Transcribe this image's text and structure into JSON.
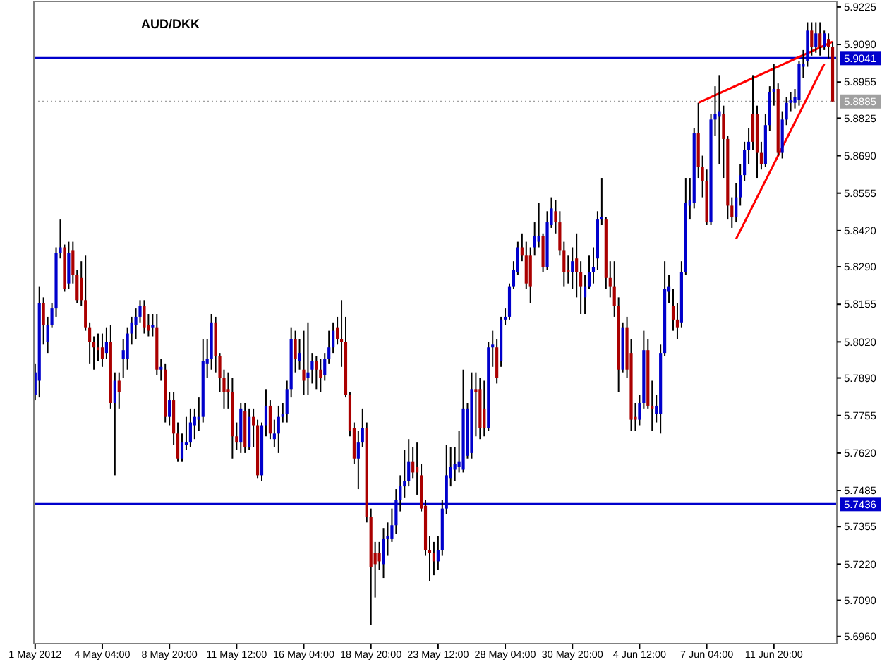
{
  "chart_data": {
    "type": "candlestick",
    "title": "AUD/DKK",
    "categories": [
      "1 May 2012",
      null,
      null,
      null,
      null,
      null,
      null,
      null,
      null,
      null,
      null,
      null,
      null,
      null,
      null,
      null,
      "4 May 04:00",
      null,
      null,
      null,
      null,
      null,
      null,
      null,
      null,
      null,
      null,
      null,
      null,
      null,
      null,
      null,
      "8 May 20:00",
      null,
      null,
      null,
      null,
      null,
      null,
      null,
      null,
      null,
      null,
      null,
      null,
      null,
      null,
      null,
      "11 May 12:00",
      null,
      null,
      null,
      null,
      null,
      null,
      null,
      null,
      null,
      null,
      null,
      null,
      null,
      null,
      null,
      "16 May 04:00",
      null,
      null,
      null,
      null,
      null,
      null,
      null,
      null,
      null,
      null,
      null,
      null,
      null,
      null,
      null,
      "18 May 20:00",
      null,
      null,
      null,
      null,
      null,
      null,
      null,
      null,
      null,
      null,
      null,
      null,
      null,
      null,
      null,
      "23 May 12:00",
      null,
      null,
      null,
      null,
      null,
      null,
      null,
      null,
      null,
      null,
      null,
      null,
      null,
      null,
      null,
      "28 May 04:00",
      null,
      null,
      null,
      null,
      null,
      null,
      null,
      null,
      null,
      null,
      null,
      null,
      null,
      null,
      null,
      "30 May 20:00",
      null,
      null,
      null,
      null,
      null,
      null,
      null,
      null,
      null,
      null,
      null,
      null,
      null,
      null,
      null,
      "4 Jun 12:00",
      null,
      null,
      null,
      null,
      null,
      null,
      null,
      null,
      null,
      null,
      null,
      null,
      null,
      null,
      null,
      "7 Jun 04:00",
      null,
      null,
      null,
      null,
      null,
      null,
      null,
      null,
      null,
      null,
      null,
      null,
      null,
      null,
      null,
      "11 Jun 20:00",
      null,
      null,
      null,
      null,
      null,
      null,
      null,
      null,
      null,
      null,
      null,
      null,
      null,
      null
    ],
    "ohlc": [
      [
        5.783,
        5.794,
        5.781,
        5.791
      ],
      [
        5.788,
        5.822,
        5.782,
        5.816
      ],
      [
        5.816,
        5.818,
        5.801,
        5.808
      ],
      [
        5.802,
        5.811,
        5.798,
        5.808
      ],
      [
        5.808,
        5.816,
        5.807,
        5.814
      ],
      [
        5.814,
        5.836,
        5.811,
        5.834
      ],
      [
        5.834,
        5.846,
        5.832,
        5.836
      ],
      [
        5.836,
        5.837,
        5.82,
        5.821
      ],
      [
        5.823,
        5.838,
        5.821,
        5.834
      ],
      [
        5.835,
        5.838,
        5.823,
        5.826
      ],
      [
        5.826,
        5.828,
        5.816,
        5.817
      ],
      [
        5.825,
        5.831,
        5.815,
        5.817
      ],
      [
        5.817,
        5.833,
        5.806,
        5.807
      ],
      [
        5.807,
        5.809,
        5.794,
        5.802
      ],
      [
        5.802,
        5.804,
        5.792,
        5.8
      ],
      [
        5.8,
        5.805,
        5.795,
        5.799
      ],
      [
        5.8,
        5.805,
        5.793,
        5.796
      ],
      [
        5.798,
        5.807,
        5.796,
        5.802
      ],
      [
        5.802,
        5.808,
        5.778,
        5.78
      ],
      [
        5.78,
        5.791,
        5.754,
        5.788
      ],
      [
        5.788,
        5.791,
        5.778,
        5.784
      ],
      [
        5.796,
        5.803,
        5.789,
        5.799
      ],
      [
        5.796,
        5.807,
        5.792,
        5.805
      ],
      [
        5.805,
        5.811,
        5.801,
        5.809
      ],
      [
        5.808,
        5.814,
        5.803,
        5.811
      ],
      [
        5.811,
        5.817,
        5.809,
        5.815
      ],
      [
        5.815,
        5.817,
        5.805,
        5.807
      ],
      [
        5.808,
        5.812,
        5.804,
        5.806
      ],
      [
        5.807,
        5.812,
        5.804,
        5.808
      ],
      [
        5.807,
        5.812,
        5.79,
        5.792
      ],
      [
        5.792,
        5.796,
        5.788,
        5.793
      ],
      [
        5.792,
        5.794,
        5.773,
        5.775
      ],
      [
        5.775,
        5.784,
        5.772,
        5.781
      ],
      [
        5.781,
        5.784,
        5.765,
        5.769
      ],
      [
        5.769,
        5.773,
        5.759,
        5.76
      ],
      [
        5.76,
        5.769,
        5.759,
        5.766
      ],
      [
        5.765,
        5.775,
        5.763,
        5.766
      ],
      [
        5.766,
        5.778,
        5.764,
        5.773
      ],
      [
        5.772,
        5.778,
        5.767,
        5.775
      ],
      [
        5.774,
        5.782,
        5.77,
        5.775
      ],
      [
        5.775,
        5.803,
        5.773,
        5.795
      ],
      [
        5.794,
        5.803,
        5.789,
        5.796
      ],
      [
        5.796,
        5.812,
        5.792,
        5.809
      ],
      [
        5.809,
        5.811,
        5.791,
        5.797
      ],
      [
        5.797,
        5.798,
        5.784,
        5.789
      ],
      [
        5.789,
        5.792,
        5.778,
        5.784
      ],
      [
        5.785,
        5.791,
        5.778,
        5.784
      ],
      [
        5.784,
        5.789,
        5.76,
        5.768
      ],
      [
        5.768,
        5.773,
        5.763,
        5.766
      ],
      [
        5.766,
        5.78,
        5.762,
        5.778
      ],
      [
        5.777,
        5.78,
        5.762,
        5.764
      ],
      [
        5.764,
        5.778,
        5.763,
        5.775
      ],
      [
        5.775,
        5.778,
        5.764,
        5.772
      ],
      [
        5.772,
        5.774,
        5.753,
        5.754
      ],
      [
        5.754,
        5.773,
        5.752,
        5.772
      ],
      [
        5.772,
        5.785,
        5.768,
        5.779
      ],
      [
        5.779,
        5.781,
        5.767,
        5.769
      ],
      [
        5.767,
        5.774,
        5.764,
        5.769
      ],
      [
        5.769,
        5.779,
        5.762,
        5.775
      ],
      [
        5.775,
        5.78,
        5.773,
        5.776
      ],
      [
        5.776,
        5.788,
        5.773,
        5.785
      ],
      [
        5.785,
        5.807,
        5.782,
        5.803
      ],
      [
        5.803,
        5.806,
        5.791,
        5.796
      ],
      [
        5.795,
        5.803,
        5.792,
        5.798
      ],
      [
        5.792,
        5.806,
        5.783,
        5.788
      ],
      [
        5.789,
        5.809,
        5.783,
        5.791
      ],
      [
        5.792,
        5.798,
        5.787,
        5.795
      ],
      [
        5.795,
        5.797,
        5.785,
        5.792
      ],
      [
        5.792,
        5.796,
        5.784,
        5.789
      ],
      [
        5.79,
        5.798,
        5.788,
        5.796
      ],
      [
        5.796,
        5.806,
        5.794,
        5.8
      ],
      [
        5.8,
        5.809,
        5.798,
        5.806
      ],
      [
        5.807,
        5.811,
        5.801,
        5.803
      ],
      [
        5.803,
        5.817,
        5.793,
        5.802
      ],
      [
        5.802,
        5.811,
        5.782,
        5.783
      ],
      [
        5.783,
        5.784,
        5.768,
        5.77
      ],
      [
        5.771,
        5.773,
        5.758,
        5.76
      ],
      [
        5.76,
        5.77,
        5.749,
        5.766
      ],
      [
        5.766,
        5.778,
        5.764,
        5.771
      ],
      [
        5.771,
        5.773,
        5.737,
        5.739
      ],
      [
        5.739,
        5.742,
        5.7,
        5.721
      ],
      [
        5.726,
        5.73,
        5.71,
        5.722
      ],
      [
        5.726,
        5.73,
        5.72,
        5.723
      ],
      [
        5.722,
        5.735,
        5.717,
        5.731
      ],
      [
        5.731,
        5.737,
        5.725,
        5.732
      ],
      [
        5.731,
        5.742,
        5.73,
        5.736
      ],
      [
        5.736,
        5.749,
        5.733,
        5.745
      ],
      [
        5.745,
        5.754,
        5.741,
        5.75
      ],
      [
        5.75,
        5.763,
        5.746,
        5.752
      ],
      [
        5.752,
        5.767,
        5.75,
        5.759
      ],
      [
        5.759,
        5.764,
        5.753,
        5.755
      ],
      [
        5.757,
        5.766,
        5.747,
        5.755
      ],
      [
        5.754,
        5.758,
        5.741,
        5.742
      ],
      [
        5.743,
        5.745,
        5.725,
        5.727
      ],
      [
        5.727,
        5.732,
        5.716,
        5.726
      ],
      [
        5.726,
        5.73,
        5.718,
        5.723
      ],
      [
        5.723,
        5.732,
        5.72,
        5.727
      ],
      [
        5.727,
        5.745,
        5.725,
        5.742
      ],
      [
        5.742,
        5.765,
        5.74,
        5.754
      ],
      [
        5.753,
        5.764,
        5.75,
        5.757
      ],
      [
        5.756,
        5.764,
        5.752,
        5.758
      ],
      [
        5.757,
        5.77,
        5.755,
        5.759
      ],
      [
        5.756,
        5.792,
        5.755,
        5.778
      ],
      [
        5.761,
        5.78,
        5.76,
        5.778
      ],
      [
        5.762,
        5.791,
        5.76,
        5.785
      ],
      [
        5.785,
        5.791,
        5.768,
        5.784
      ],
      [
        5.785,
        5.789,
        5.767,
        5.771
      ],
      [
        5.778,
        5.788,
        5.768,
        5.771
      ],
      [
        5.771,
        5.802,
        5.77,
        5.8
      ],
      [
        5.8,
        5.806,
        5.793,
        5.801
      ],
      [
        5.8,
        5.803,
        5.787,
        5.789
      ],
      [
        5.795,
        5.811,
        5.793,
        5.81
      ],
      [
        5.81,
        5.814,
        5.808,
        5.811
      ],
      [
        5.811,
        5.823,
        5.81,
        5.822
      ],
      [
        5.822,
        5.831,
        5.821,
        5.828
      ],
      [
        5.827,
        5.838,
        5.826,
        5.836
      ],
      [
        5.836,
        5.841,
        5.831,
        5.833
      ],
      [
        5.833,
        5.838,
        5.821,
        5.823
      ],
      [
        5.833,
        5.836,
        5.816,
        5.822
      ],
      [
        5.836,
        5.845,
        5.833,
        5.84
      ],
      [
        5.838,
        5.852,
        5.836,
        5.84
      ],
      [
        5.84,
        5.841,
        5.827,
        5.829
      ],
      [
        5.829,
        5.849,
        5.828,
        5.845
      ],
      [
        5.844,
        5.854,
        5.843,
        5.85
      ],
      [
        5.849,
        5.853,
        5.841,
        5.845
      ],
      [
        5.845,
        5.849,
        5.833,
        5.835
      ],
      [
        5.835,
        5.838,
        5.822,
        5.827
      ],
      [
        5.828,
        5.833,
        5.823,
        5.827
      ],
      [
        5.827,
        5.836,
        5.821,
        5.831
      ],
      [
        5.832,
        5.841,
        5.818,
        5.827
      ],
      [
        5.827,
        5.831,
        5.812,
        5.822
      ],
      [
        5.818,
        5.826,
        5.812,
        5.822
      ],
      [
        5.822,
        5.833,
        5.821,
        5.827
      ],
      [
        5.827,
        5.836,
        5.823,
        5.829
      ],
      [
        5.832,
        5.849,
        5.828,
        5.846
      ],
      [
        5.846,
        5.861,
        5.844,
        5.847
      ],
      [
        5.846,
        5.847,
        5.821,
        5.825
      ],
      [
        5.825,
        5.831,
        5.818,
        5.822
      ],
      [
        5.822,
        5.831,
        5.811,
        5.815
      ],
      [
        5.815,
        5.818,
        5.784,
        5.792
      ],
      [
        5.792,
        5.809,
        5.791,
        5.807
      ],
      [
        5.807,
        5.811,
        5.789,
        5.792
      ],
      [
        5.798,
        5.803,
        5.77,
        5.774
      ],
      [
        5.775,
        5.78,
        5.77,
        5.774
      ],
      [
        5.774,
        5.783,
        5.772,
        5.78
      ],
      [
        5.78,
        5.806,
        5.778,
        5.799
      ],
      [
        5.799,
        5.803,
        5.778,
        5.779
      ],
      [
        5.779,
        5.788,
        5.77,
        5.778
      ],
      [
        5.776,
        5.783,
        5.773,
        5.779
      ],
      [
        5.776,
        5.801,
        5.769,
        5.798
      ],
      [
        5.798,
        5.831,
        5.797,
        5.821
      ],
      [
        5.82,
        5.826,
        5.816,
        5.822
      ],
      [
        5.815,
        5.821,
        5.806,
        5.81
      ],
      [
        5.81,
        5.816,
        5.803,
        5.807
      ],
      [
        5.809,
        5.831,
        5.807,
        5.827
      ],
      [
        5.827,
        5.861,
        5.826,
        5.852
      ],
      [
        5.851,
        5.861,
        5.846,
        5.853
      ],
      [
        5.852,
        5.879,
        5.85,
        5.877
      ],
      [
        5.877,
        5.888,
        5.861,
        5.865
      ],
      [
        5.865,
        5.869,
        5.854,
        5.86
      ],
      [
        5.86,
        5.864,
        5.844,
        5.845
      ],
      [
        5.845,
        5.884,
        5.844,
        5.882
      ],
      [
        5.882,
        5.894,
        5.876,
        5.884
      ],
      [
        5.883,
        5.898,
        5.866,
        5.885
      ],
      [
        5.884,
        5.887,
        5.861,
        5.875
      ],
      [
        5.875,
        5.876,
        5.846,
        5.851
      ],
      [
        5.851,
        5.854,
        5.843,
        5.847
      ],
      [
        5.847,
        5.859,
        5.845,
        5.854
      ],
      [
        5.854,
        5.866,
        5.851,
        5.862
      ],
      [
        5.862,
        5.874,
        5.86,
        5.871
      ],
      [
        5.871,
        5.879,
        5.866,
        5.874
      ],
      [
        5.884,
        5.898,
        5.871,
        5.874
      ],
      [
        5.884,
        5.887,
        5.861,
        5.87
      ],
      [
        5.87,
        5.874,
        5.864,
        5.866
      ],
      [
        5.866,
        5.884,
        5.865,
        5.88
      ],
      [
        5.88,
        5.894,
        5.878,
        5.892
      ],
      [
        5.892,
        5.902,
        5.887,
        5.893
      ],
      [
        5.893,
        5.895,
        5.869,
        5.87
      ],
      [
        5.87,
        5.885,
        5.868,
        5.882
      ],
      [
        5.882,
        5.89,
        5.88,
        5.888
      ],
      [
        5.888,
        5.892,
        5.885,
        5.889
      ],
      [
        5.888,
        5.893,
        5.886,
        5.89
      ],
      [
        5.889,
        5.903,
        5.887,
        5.902
      ],
      [
        5.901,
        5.907,
        5.897,
        5.902
      ],
      [
        5.903,
        5.917,
        5.901,
        5.914
      ],
      [
        5.914,
        5.917,
        5.905,
        5.908
      ],
      [
        5.908,
        5.917,
        5.906,
        5.913
      ],
      [
        5.913,
        5.917,
        5.905,
        5.908
      ],
      [
        5.908,
        5.914,
        5.907,
        5.913
      ],
      [
        5.911,
        5.913,
        5.904,
        5.908
      ],
      [
        5.908,
        5.91,
        5.8885,
        5.8885
      ]
    ],
    "series": [
      {
        "type": "line",
        "color": "#ff0000",
        "values": [
          null,
          null,
          null,
          null,
          null,
          null,
          null,
          null,
          null,
          null,
          null,
          null,
          null,
          null,
          null,
          null,
          null,
          null,
          null,
          null,
          null,
          null,
          null,
          null,
          null,
          null,
          null,
          null,
          null,
          null,
          null,
          null,
          null,
          null,
          null,
          null,
          null,
          null,
          null,
          null,
          null,
          null,
          null,
          null,
          null,
          null,
          null,
          null,
          null,
          null,
          null,
          null,
          null,
          null,
          null,
          null,
          null,
          null,
          null,
          null,
          null,
          null,
          null,
          null,
          null,
          null,
          null,
          null,
          null,
          null,
          null,
          null,
          null,
          null,
          null,
          null,
          null,
          null,
          null,
          null,
          null,
          null,
          null,
          null,
          null,
          null,
          null,
          null,
          null,
          null,
          null,
          null,
          null,
          null,
          null,
          null,
          null,
          null,
          null,
          null,
          null,
          null,
          null,
          null,
          null,
          null,
          null,
          null,
          null,
          null,
          null,
          null,
          null,
          null,
          null,
          null,
          null,
          null,
          null,
          null,
          null,
          null,
          null,
          null,
          null,
          null,
          null,
          null,
          null,
          null,
          null,
          null,
          null,
          null,
          null,
          null,
          null,
          null,
          null,
          null,
          null,
          null,
          null,
          null,
          null,
          null,
          null,
          null,
          null,
          null,
          null,
          null,
          null,
          null,
          null,
          null,
          null,
          null,
          5.888,
          null,
          null,
          null,
          null,
          null,
          null,
          null,
          null,
          null,
          null,
          null,
          null,
          null,
          null,
          null,
          null,
          null,
          null,
          null,
          null,
          null,
          null,
          null,
          null,
          null,
          null,
          null,
          null,
          null,
          null,
          null,
          5.91
        ]
      },
      {
        "type": "line",
        "color": "#ff0000",
        "values": [
          null,
          null,
          null,
          null,
          null,
          null,
          null,
          null,
          null,
          null,
          null,
          null,
          null,
          null,
          null,
          null,
          null,
          null,
          null,
          null,
          null,
          null,
          null,
          null,
          null,
          null,
          null,
          null,
          null,
          null,
          null,
          null,
          null,
          null,
          null,
          null,
          null,
          null,
          null,
          null,
          null,
          null,
          null,
          null,
          null,
          null,
          null,
          null,
          null,
          null,
          null,
          null,
          null,
          null,
          null,
          null,
          null,
          null,
          null,
          null,
          null,
          null,
          null,
          null,
          null,
          null,
          null,
          null,
          null,
          null,
          null,
          null,
          null,
          null,
          null,
          null,
          null,
          null,
          null,
          null,
          null,
          null,
          null,
          null,
          null,
          null,
          null,
          null,
          null,
          null,
          null,
          null,
          null,
          null,
          null,
          null,
          null,
          null,
          null,
          null,
          null,
          null,
          null,
          null,
          null,
          null,
          null,
          null,
          null,
          null,
          null,
          null,
          null,
          null,
          null,
          null,
          null,
          null,
          null,
          null,
          null,
          null,
          null,
          null,
          null,
          null,
          null,
          null,
          null,
          null,
          null,
          null,
          null,
          null,
          null,
          null,
          null,
          null,
          null,
          null,
          null,
          null,
          null,
          null,
          null,
          null,
          null,
          null,
          null,
          null,
          null,
          null,
          null,
          null,
          null,
          null,
          null,
          null,
          null,
          null,
          null,
          null,
          null,
          null,
          null,
          null,
          null,
          5.839,
          null,
          null,
          null,
          null,
          null,
          null,
          null,
          null,
          null,
          null,
          null,
          null,
          null,
          null,
          null,
          null,
          null,
          null,
          null,
          null,
          5.902,
          null,
          null
        ]
      }
    ],
    "ylim": [
      5.6934,
      5.9245
    ],
    "yticks": [
      {
        "value": 5.696,
        "label": "5.6960"
      },
      {
        "value": 5.709,
        "label": "5.7090"
      },
      {
        "value": 5.722,
        "label": "5.7220"
      },
      {
        "value": 5.7355,
        "label": "5.7355"
      },
      {
        "value": 5.7485,
        "label": "5.7485"
      },
      {
        "value": 5.762,
        "label": "5.7620"
      },
      {
        "value": 5.7755,
        "label": "5.7755"
      },
      {
        "value": 5.789,
        "label": "5.7890"
      },
      {
        "value": 5.802,
        "label": "5.8020"
      },
      {
        "value": 5.8155,
        "label": "5.8155"
      },
      {
        "value": 5.829,
        "label": "5.8290"
      },
      {
        "value": 5.842,
        "label": "5.8420"
      },
      {
        "value": 5.8555,
        "label": "5.8555"
      },
      {
        "value": 5.869,
        "label": "5.8690"
      },
      {
        "value": 5.8825,
        "label": "5.8825"
      },
      {
        "value": 5.8955,
        "label": "5.8955"
      },
      {
        "value": 5.909,
        "label": "5.9090"
      },
      {
        "value": 5.9225,
        "label": "5.9225"
      }
    ],
    "ref_lines": [
      {
        "axis": "y",
        "value": 5.9041,
        "label": "5.9041",
        "color": "#0000cc",
        "line_style": "solid"
      },
      {
        "axis": "y",
        "value": 5.7436,
        "label": "5.7436",
        "color": "#0000cc",
        "line_style": "solid"
      },
      {
        "axis": "y",
        "value": 5.8885,
        "label": "5.8885",
        "color": "#a0a0a0",
        "line_style": "dotted"
      }
    ],
    "grid": false
  }
}
